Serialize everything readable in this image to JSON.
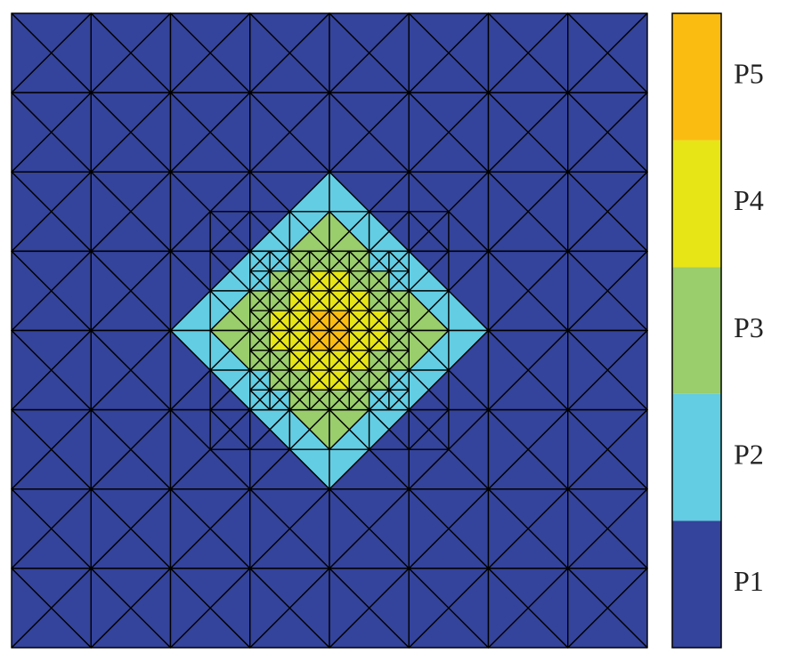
{
  "colorbar": {
    "labels": [
      "P1",
      "P2",
      "P3",
      "P4",
      "P5"
    ],
    "colors": [
      "#34439b",
      "#62cde3",
      "#9acd6b",
      "#e7e516",
      "#fbbc12"
    ]
  }
}
